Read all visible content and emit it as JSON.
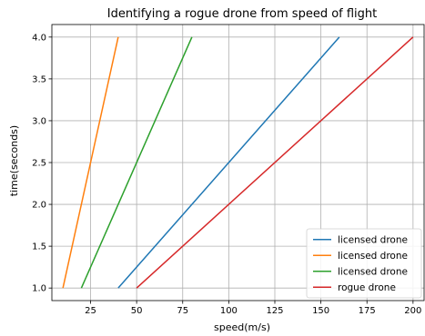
{
  "chart_data": {
    "type": "line",
    "title": "Identifying a rogue drone from speed of flight",
    "xlabel": "speed(m/s)",
    "ylabel": "time(seconds)",
    "xlim": [
      4,
      206
    ],
    "ylim": [
      0.85,
      4.15
    ],
    "xticks": [
      "25",
      "50",
      "75",
      "100",
      "125",
      "150",
      "175",
      "200"
    ],
    "xtick_values": [
      25,
      50,
      75,
      100,
      125,
      150,
      175,
      200
    ],
    "yticks": [
      "1.0",
      "1.5",
      "2.0",
      "2.5",
      "3.0",
      "3.5",
      "4.0"
    ],
    "ytick_values": [
      1.0,
      1.5,
      2.0,
      2.5,
      3.0,
      3.5,
      4.0
    ],
    "grid": true,
    "legend_position": "lower-right",
    "series": [
      {
        "name": "licensed drone",
        "color": "#1f77b4",
        "points": [
          [
            40,
            1.0
          ],
          [
            160,
            4.0
          ]
        ]
      },
      {
        "name": "licensed drone",
        "color": "#ff7f0e",
        "points": [
          [
            10,
            1.0
          ],
          [
            40,
            4.0
          ]
        ]
      },
      {
        "name": "licensed drone",
        "color": "#2ca02c",
        "points": [
          [
            20,
            1.0
          ],
          [
            80,
            4.0
          ]
        ]
      },
      {
        "name": "rogue drone",
        "color": "#d62728",
        "points": [
          [
            50,
            1.0
          ],
          [
            200,
            4.0
          ]
        ]
      }
    ]
  }
}
